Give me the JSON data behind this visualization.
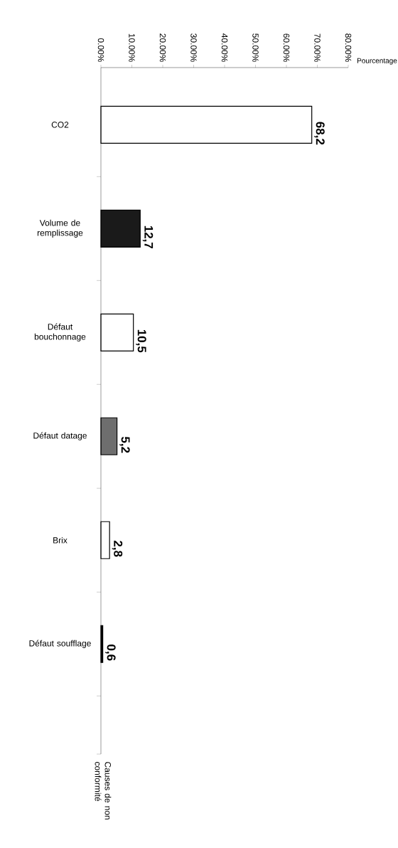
{
  "chart_data": {
    "type": "bar",
    "orientation": "horizontal",
    "xlabel": "Pourcentage",
    "ylabel": "Causes de non conformité",
    "categories": [
      "CO2",
      "Volume de remplissage",
      "Défaut bouchonnage",
      "Défaut datage",
      "Brix",
      "Défaut soufflage"
    ],
    "values": [
      68.2,
      12.7,
      10.5,
      5.2,
      2.8,
      0.6
    ],
    "colors": [
      "#ffffff",
      "#1a1a1a",
      "#ffffff",
      "#6e6e6e",
      "#ffffff",
      "#000000"
    ],
    "value_labels": [
      "68,2",
      "12,7",
      "10,5",
      "5,2",
      "2,8",
      "0,6"
    ],
    "xlim": [
      0,
      80
    ],
    "xticks": [
      {
        "value": 0,
        "label": "0.00%"
      },
      {
        "value": 10,
        "label": "10.00%"
      },
      {
        "value": 20,
        "label": "20.00%"
      },
      {
        "value": 30,
        "label": "30.00%"
      },
      {
        "value": 40,
        "label": "40.00%"
      },
      {
        "value": 50,
        "label": "50.00%"
      },
      {
        "value": 60,
        "label": "60.00%"
      },
      {
        "value": 70,
        "label": "70.00%"
      },
      {
        "value": 80,
        "label": "80.00%"
      }
    ]
  }
}
